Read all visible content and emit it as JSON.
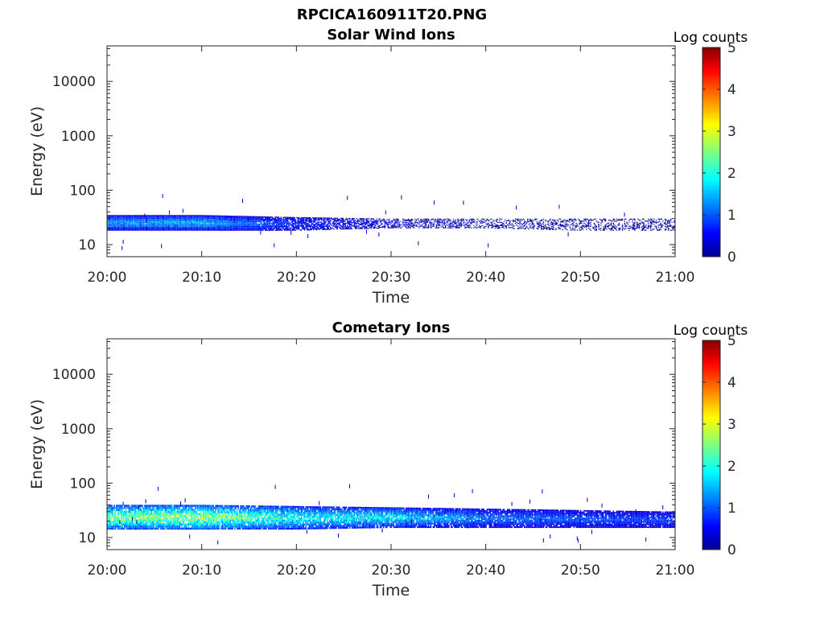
{
  "figure": {
    "filename_title": "RPCICA160911T20.PNG"
  },
  "chart_data": [
    {
      "type": "heatmap",
      "title": "Solar Wind Ions",
      "xlabel": "Time",
      "ylabel": "Energy (eV)",
      "xlim": [
        "20:00",
        "21:00"
      ],
      "x_tick_labels": [
        "20:00",
        "20:10",
        "20:20",
        "20:30",
        "20:40",
        "20:50",
        "21:00"
      ],
      "y_scale": "log",
      "ylim": [
        6,
        45000
      ],
      "y_tick_labels": [
        "10",
        "100",
        "1000",
        "10000"
      ],
      "colorbar": {
        "title": "Log counts",
        "range": [
          0,
          5
        ],
        "tick_labels": [
          "0",
          "1",
          "2",
          "3",
          "4",
          "5"
        ],
        "colormap": "jet"
      },
      "colormap_stops": [
        "#00008f",
        "#0000ff",
        "#00ffff",
        "#ffff00",
        "#ff0000",
        "#800000"
      ],
      "band_description_points": [
        {
          "time": "20:00",
          "energy_low": 18,
          "energy_high": 35,
          "peak_log_counts": 1.5
        },
        {
          "time": "20:10",
          "energy_low": 18,
          "energy_high": 35,
          "peak_log_counts": 1.6
        },
        {
          "time": "20:20",
          "energy_low": 18,
          "energy_high": 32,
          "peak_log_counts": 0.9
        },
        {
          "time": "20:30",
          "energy_low": 20,
          "energy_high": 30,
          "peak_log_counts": 0.5
        },
        {
          "time": "20:40",
          "energy_low": 20,
          "energy_high": 30,
          "peak_log_counts": 0.3
        },
        {
          "time": "20:50",
          "energy_low": 18,
          "energy_high": 30,
          "peak_log_counts": 0.2
        },
        {
          "time": "21:00",
          "energy_low": 18,
          "energy_high": 30,
          "peak_log_counts": 0.2
        }
      ]
    },
    {
      "type": "heatmap",
      "title": "Cometary Ions",
      "xlabel": "Time",
      "ylabel": "Energy (eV)",
      "xlim": [
        "20:00",
        "21:00"
      ],
      "x_tick_labels": [
        "20:00",
        "20:10",
        "20:20",
        "20:30",
        "20:40",
        "20:50",
        "21:00"
      ],
      "y_scale": "log",
      "ylim": [
        6,
        45000
      ],
      "y_tick_labels": [
        "10",
        "100",
        "1000",
        "10000"
      ],
      "colorbar": {
        "title": "Log counts",
        "range": [
          0,
          5
        ],
        "tick_labels": [
          "0",
          "1",
          "2",
          "3",
          "4",
          "5"
        ],
        "colormap": "jet"
      },
      "colormap_stops": [
        "#00008f",
        "#0000ff",
        "#00ffff",
        "#ffff00",
        "#ff0000",
        "#800000"
      ],
      "band_description_points": [
        {
          "time": "20:00",
          "energy_low": 14,
          "energy_high": 40,
          "peak_log_counts": 2.7
        },
        {
          "time": "20:10",
          "energy_low": 14,
          "energy_high": 40,
          "peak_log_counts": 2.8
        },
        {
          "time": "20:20",
          "energy_low": 14,
          "energy_high": 38,
          "peak_log_counts": 2.1
        },
        {
          "time": "20:30",
          "energy_low": 15,
          "energy_high": 36,
          "peak_log_counts": 1.9
        },
        {
          "time": "20:40",
          "energy_low": 15,
          "energy_high": 34,
          "peak_log_counts": 1.3
        },
        {
          "time": "20:50",
          "energy_low": 15,
          "energy_high": 32,
          "peak_log_counts": 1.1
        },
        {
          "time": "21:00",
          "energy_low": 15,
          "energy_high": 30,
          "peak_log_counts": 1.0
        }
      ]
    }
  ]
}
